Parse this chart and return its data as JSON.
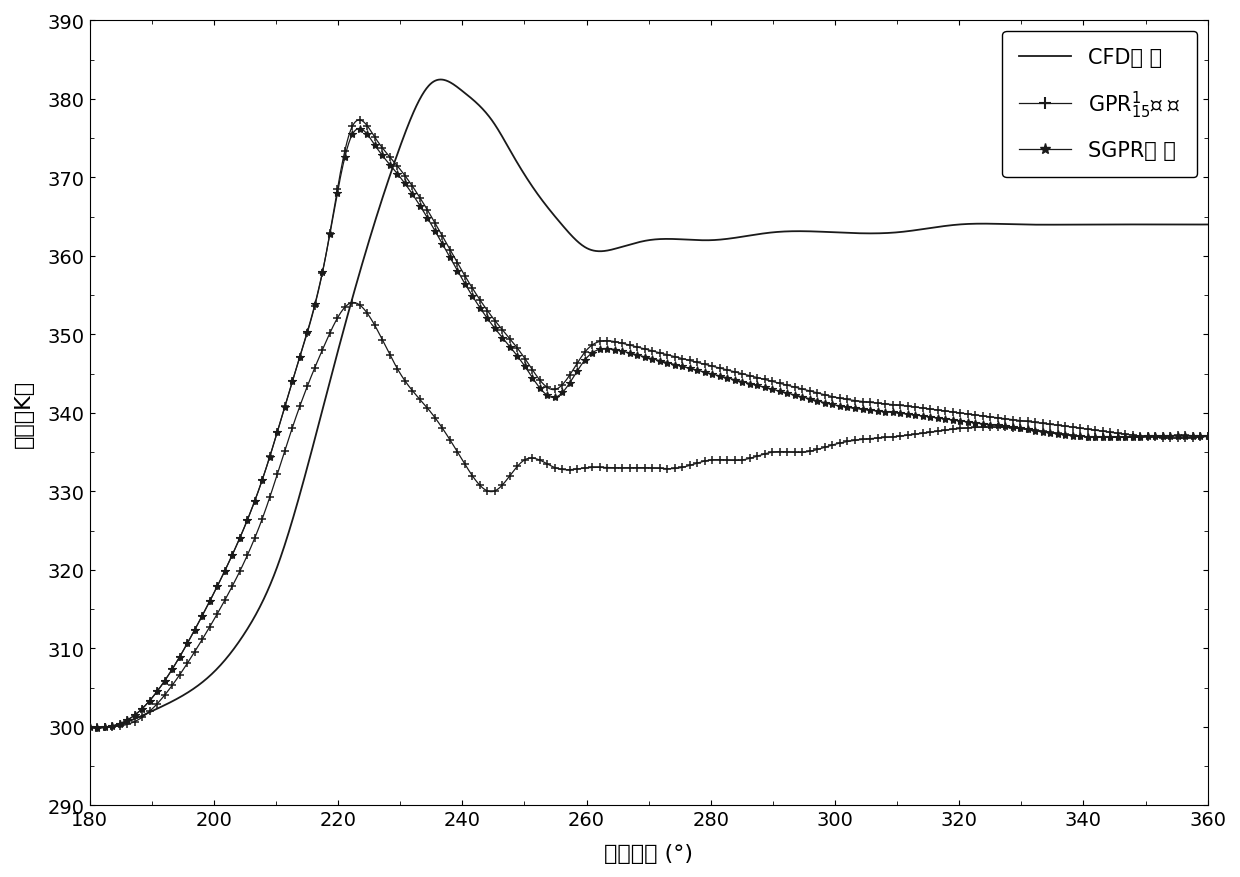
{
  "xlim": [
    180,
    360
  ],
  "ylim": [
    290,
    390
  ],
  "xticks": [
    180,
    200,
    220,
    240,
    260,
    280,
    300,
    320,
    340,
    360
  ],
  "yticks": [
    290,
    300,
    310,
    320,
    330,
    340,
    350,
    360,
    370,
    380,
    390
  ],
  "xlabel": "曲柄转角 (°)",
  "ylabel": "温度（K）",
  "legend_labels": [
    "CFD模 型",
    "GPR$^1_{15}$模 型",
    "SGPR模 型"
  ],
  "background_color": "#ffffff",
  "fontsize_label": 16,
  "fontsize_tick": 14,
  "fontsize_legend": 15,
  "cfd_x": [
    180,
    183,
    190,
    195,
    200,
    205,
    210,
    215,
    220,
    225,
    230,
    235,
    240,
    245,
    248,
    252,
    256,
    260,
    265,
    270,
    280,
    290,
    300,
    310,
    320,
    330,
    340,
    350,
    360
  ],
  "cfd_y": [
    300,
    300,
    302,
    304,
    307,
    312,
    320,
    333,
    348,
    362,
    374,
    382,
    381,
    377,
    373,
    368,
    364,
    361,
    361,
    362,
    362,
    363,
    363,
    363,
    364,
    364,
    364,
    364,
    364
  ],
  "gpr_up_x": [
    180,
    183,
    188,
    193,
    198,
    203,
    208,
    213,
    218,
    222,
    226,
    230,
    235,
    240,
    245,
    250,
    255,
    260,
    265,
    270,
    275,
    280,
    285,
    290,
    295,
    300,
    310,
    320,
    330,
    340,
    350,
    360
  ],
  "gpr_up_y": [
    300,
    300,
    302,
    307,
    314,
    322,
    332,
    345,
    360,
    376,
    375,
    371,
    365,
    358,
    352,
    347,
    343,
    348,
    349,
    348,
    347,
    346,
    345,
    344,
    343,
    342,
    341,
    340,
    339,
    338,
    337,
    337
  ],
  "gpr_lo_x": [
    180,
    183,
    188,
    193,
    198,
    203,
    208,
    213,
    218,
    222,
    226,
    230,
    235,
    240,
    245,
    250,
    255,
    260,
    265,
    270,
    275,
    280,
    285,
    290,
    295,
    300,
    310,
    320,
    330,
    340,
    350,
    360
  ],
  "gpr_lo_y": [
    300,
    300,
    301,
    305,
    311,
    318,
    327,
    339,
    349,
    354,
    351,
    345,
    340,
    334,
    330,
    334,
    333,
    333,
    333,
    333,
    333,
    334,
    334,
    335,
    335,
    336,
    337,
    338,
    338,
    337,
    337,
    337
  ],
  "sgpr_x": [
    180,
    183,
    188,
    193,
    198,
    203,
    208,
    213,
    218,
    222,
    226,
    230,
    235,
    240,
    245,
    250,
    255,
    260,
    265,
    270,
    275,
    280,
    285,
    290,
    295,
    300,
    310,
    320,
    330,
    340,
    350,
    360
  ],
  "sgpr_y": [
    300,
    300,
    302,
    307,
    314,
    322,
    332,
    345,
    360,
    375,
    374,
    370,
    364,
    357,
    351,
    346,
    342,
    347,
    348,
    347,
    346,
    345,
    344,
    343,
    342,
    341,
    340,
    339,
    338,
    337,
    337,
    337
  ]
}
